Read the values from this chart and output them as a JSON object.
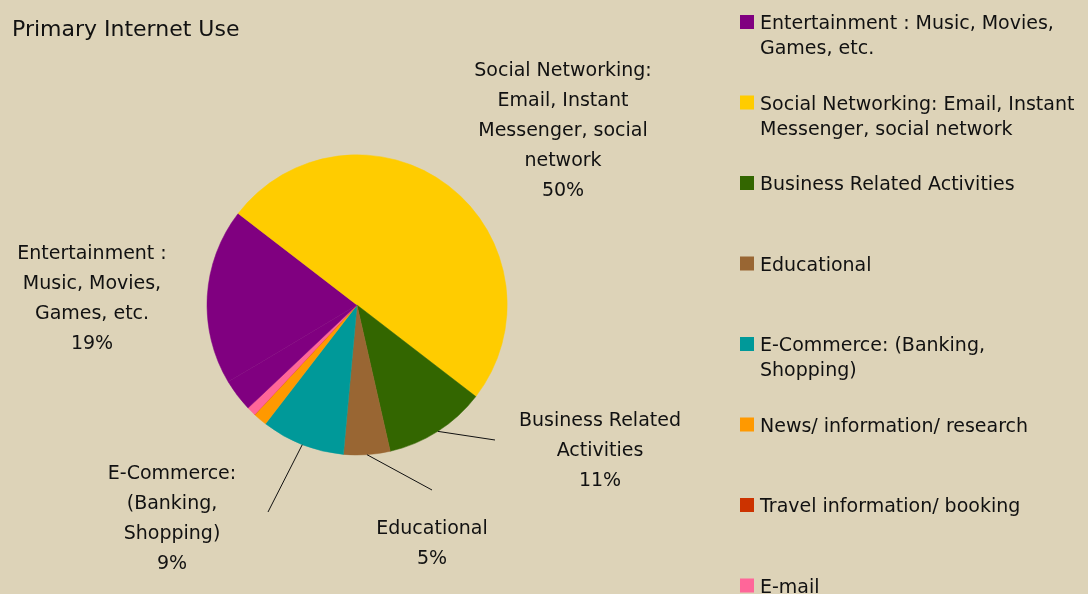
{
  "chart_data": {
    "type": "pie",
    "title": "Primary Internet Use",
    "categories": [
      "Entertainment : Music, Movies, Games, etc.",
      "Social Networking: Email, Instant Messenger, social network",
      "Business Related Activities",
      "Educational",
      "E-Commerce: (Banking, Shopping)",
      "News/ information/ research",
      "Travel information/ booking",
      "E-mail",
      null
    ],
    "values": [
      19,
      50,
      11,
      5,
      9,
      1.5,
      0,
      1,
      3.5
    ],
    "colors": [
      "#800080",
      "#ffcc00",
      "#336600",
      "#996633",
      "#009999",
      "#ff9900",
      "#cc3300",
      "#ff6699",
      "#800080"
    ],
    "value_labels": [
      "19%",
      "50%",
      "11%",
      "5%",
      "9%",
      null,
      null,
      null,
      null
    ],
    "legend": "right"
  }
}
